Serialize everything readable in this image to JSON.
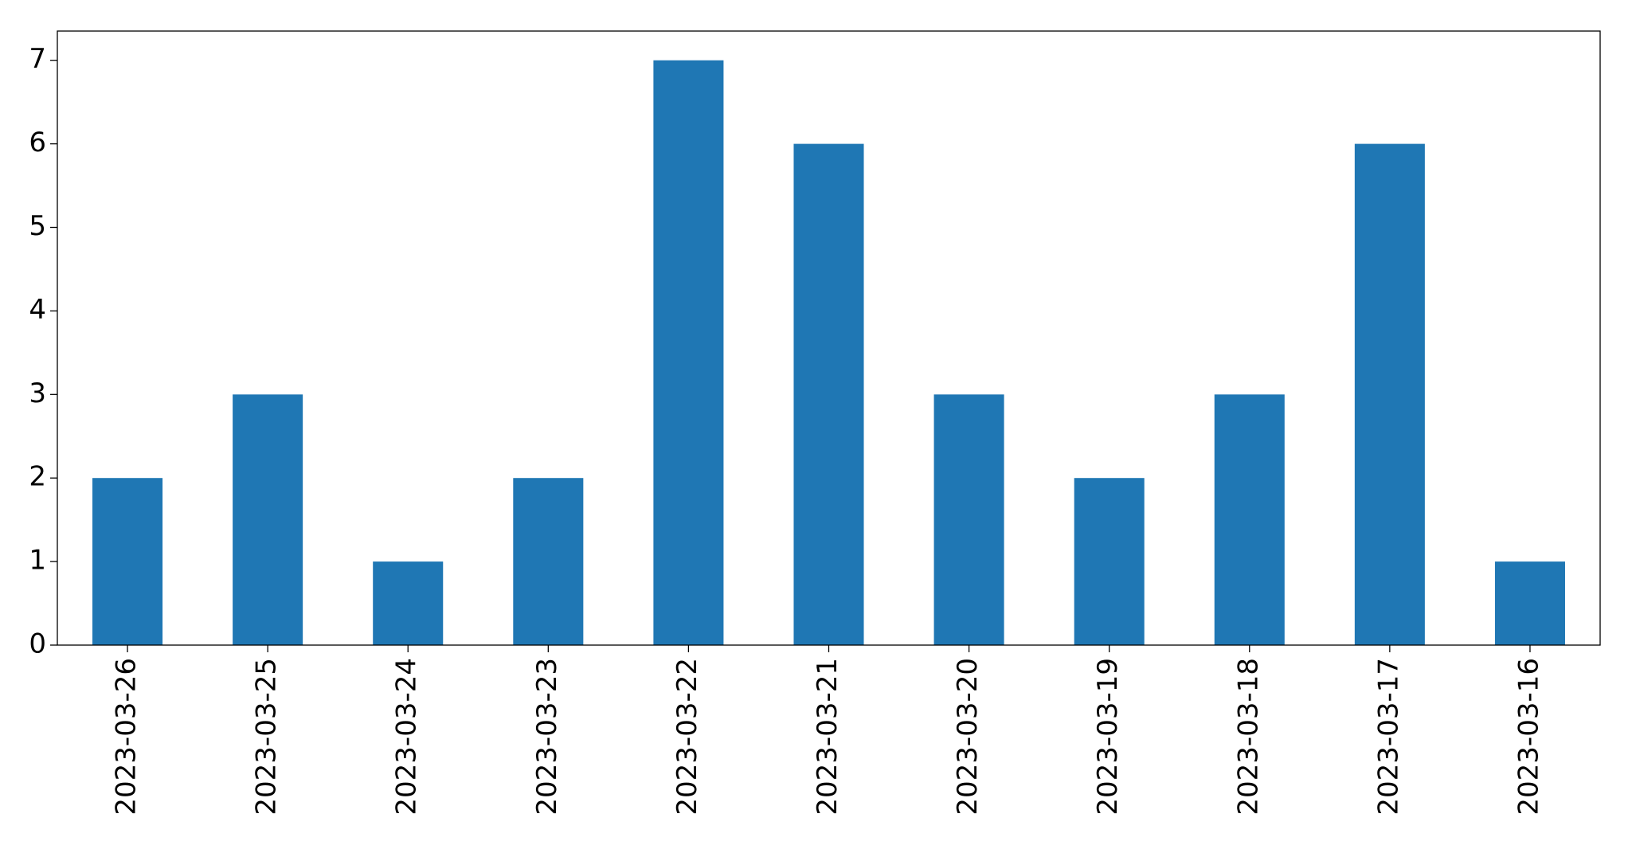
{
  "chart_data": {
    "type": "bar",
    "categories": [
      "2023-03-26",
      "2023-03-25",
      "2023-03-24",
      "2023-03-23",
      "2023-03-22",
      "2023-03-21",
      "2023-03-20",
      "2023-03-19",
      "2023-03-18",
      "2023-03-17",
      "2023-03-16"
    ],
    "values": [
      2,
      3,
      1,
      2,
      7,
      6,
      3,
      2,
      3,
      6,
      1
    ],
    "color": "#1f77b4",
    "ylim": [
      0,
      7.35
    ],
    "yticks": [
      0,
      1,
      2,
      3,
      4,
      5,
      6,
      7
    ],
    "grid": false
  }
}
